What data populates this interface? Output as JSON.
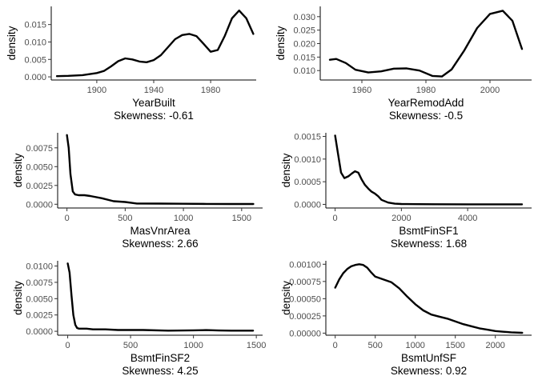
{
  "chart_data": [
    {
      "type": "line",
      "xlabel": "YearBuilt",
      "subtitle": "Skewness: -0.61",
      "ylabel": "density",
      "xlim": [
        1868,
        2012
      ],
      "ylim": [
        -0.0009,
        0.0202
      ],
      "xticks": [
        1900,
        1940,
        1980
      ],
      "yticks": [
        0.0,
        0.005,
        0.01,
        0.015
      ],
      "ytick_labels": [
        "0.000",
        "0.005",
        "0.010",
        "0.015"
      ],
      "x": [
        1872,
        1880,
        1890,
        1900,
        1905,
        1910,
        1915,
        1920,
        1925,
        1930,
        1935,
        1940,
        1945,
        1950,
        1955,
        1960,
        1965,
        1970,
        1975,
        1980,
        1985,
        1990,
        1995,
        2000,
        2005,
        2010
      ],
      "values": [
        0.0002,
        0.0003,
        0.0005,
        0.0011,
        0.0017,
        0.003,
        0.0045,
        0.0053,
        0.005,
        0.0044,
        0.0042,
        0.0048,
        0.0062,
        0.0085,
        0.0108,
        0.012,
        0.0123,
        0.0117,
        0.0095,
        0.0072,
        0.0077,
        0.0118,
        0.0168,
        0.019,
        0.0168,
        0.0123
      ]
    },
    {
      "type": "line",
      "xlabel": "YearRemodAdd",
      "subtitle": "Skewness: -0.5",
      "ylabel": "density",
      "xlim": [
        1947,
        2013
      ],
      "ylim": [
        0.0065,
        0.0338
      ],
      "xticks": [
        1960,
        1980,
        2000
      ],
      "yticks": [
        0.01,
        0.015,
        0.02,
        0.025,
        0.03
      ],
      "ytick_labels": [
        "0.010",
        "0.015",
        "0.020",
        "0.025",
        "0.030"
      ],
      "x": [
        1950,
        1952,
        1955,
        1958,
        1962,
        1966,
        1970,
        1974,
        1978,
        1982,
        1985,
        1988,
        1992,
        1996,
        2000,
        2004,
        2007,
        2010
      ],
      "values": [
        0.014,
        0.0143,
        0.0128,
        0.0103,
        0.0093,
        0.0097,
        0.0107,
        0.0108,
        0.01,
        0.008,
        0.0078,
        0.0104,
        0.0175,
        0.0258,
        0.031,
        0.0322,
        0.0285,
        0.018
      ]
    },
    {
      "type": "line",
      "xlabel": "MasVnrArea",
      "subtitle": "Skewness: 2.66",
      "ylabel": "density",
      "xlim": [
        -80,
        1680
      ],
      "ylim": [
        -0.0005,
        0.0095
      ],
      "xticks": [
        0,
        500,
        1000,
        1500
      ],
      "yticks": [
        0.0,
        0.0025,
        0.005,
        0.0075
      ],
      "ytick_labels": [
        "0.0000",
        "0.0025",
        "0.0050",
        "0.0075"
      ],
      "x": [
        0,
        15,
        30,
        50,
        70,
        100,
        150,
        200,
        300,
        400,
        500,
        600,
        800,
        1000,
        1200,
        1400,
        1600
      ],
      "values": [
        0.0092,
        0.0075,
        0.004,
        0.0017,
        0.0013,
        0.0012,
        0.0012,
        0.0011,
        0.0008,
        0.0004,
        0.0003,
        0.0001,
        8e-05,
        6e-05,
        4e-05,
        3e-05,
        3e-05
      ]
    },
    {
      "type": "line",
      "xlabel": "BsmtFinSF1",
      "subtitle": "Skewness: 1.68",
      "ylabel": "density",
      "xlim": [
        -280,
        5930
      ],
      "ylim": [
        -8e-05,
        0.00158
      ],
      "xticks": [
        0,
        2000,
        4000
      ],
      "yticks": [
        0.0,
        0.0005,
        0.001,
        0.0015
      ],
      "ytick_labels": [
        "0.0000",
        "0.0005",
        "0.0010",
        "0.0015"
      ],
      "x": [
        0,
        80,
        180,
        280,
        400,
        500,
        600,
        700,
        800,
        900,
        1000,
        1100,
        1200,
        1300,
        1400,
        1600,
        1800,
        2000,
        2500,
        3000,
        4000,
        5000,
        5640
      ],
      "values": [
        0.00152,
        0.00115,
        0.0007,
        0.00058,
        0.00062,
        0.00068,
        0.00073,
        0.0007,
        0.00055,
        0.00043,
        0.00035,
        0.00028,
        0.00024,
        0.00018,
        0.0001,
        4e-05,
        1.5e-05,
        8e-06,
        4e-06,
        3e-06,
        2e-06,
        2e-06,
        2e-06
      ]
    },
    {
      "type": "line",
      "xlabel": "BsmtFinSF2",
      "subtitle": "Skewness: 4.25",
      "ylabel": "density",
      "xlim": [
        -80,
        1550
      ],
      "ylim": [
        -0.0006,
        0.0108
      ],
      "xticks": [
        0,
        500,
        1000,
        1500
      ],
      "yticks": [
        0.0,
        0.0025,
        0.005,
        0.0075,
        0.01
      ],
      "ytick_labels": [
        "0.0000",
        "0.0025",
        "0.0050",
        "0.0075",
        "0.0100"
      ],
      "x": [
        0,
        15,
        30,
        45,
        60,
        75,
        90,
        110,
        150,
        200,
        300,
        400,
        600,
        800,
        1000,
        1100,
        1200,
        1300,
        1474
      ],
      "values": [
        0.0104,
        0.009,
        0.0055,
        0.0025,
        0.001,
        0.0005,
        0.0004,
        0.0004,
        0.0004,
        0.0003,
        0.0003,
        0.0002,
        0.0002,
        0.0001,
        0.00015,
        0.00018,
        0.00012,
        0.0001,
        0.0001
      ]
    },
    {
      "type": "line",
      "xlabel": "BsmtUnfSF",
      "subtitle": "Skewness: 0.92",
      "ylabel": "density",
      "xlim": [
        -117,
        2453
      ],
      "ylim": [
        -3e-05,
        0.00105
      ],
      "xticks": [
        0,
        500,
        1000,
        1500,
        2000
      ],
      "yticks": [
        0.0,
        0.00025,
        0.0005,
        0.00075,
        0.001
      ],
      "ytick_labels": [
        "0.00000",
        "0.00025",
        "0.00050",
        "0.00075",
        "0.00100"
      ],
      "x": [
        0,
        50,
        100,
        150,
        200,
        250,
        300,
        350,
        400,
        450,
        500,
        600,
        700,
        800,
        900,
        1000,
        1100,
        1200,
        1300,
        1400,
        1500,
        1600,
        1700,
        1800,
        1900,
        2000,
        2100,
        2200,
        2336
      ],
      "values": [
        0.00066,
        0.00078,
        0.00087,
        0.00093,
        0.00097,
        0.00099,
        0.001,
        0.00099,
        0.00095,
        0.00088,
        0.00082,
        0.00078,
        0.00074,
        0.00065,
        0.00053,
        0.00042,
        0.00033,
        0.00027,
        0.00024,
        0.00021,
        0.00017,
        0.00013,
        0.0001,
        7e-05,
        5e-05,
        3e-05,
        2e-05,
        1.2e-05,
        5e-06
      ]
    }
  ]
}
